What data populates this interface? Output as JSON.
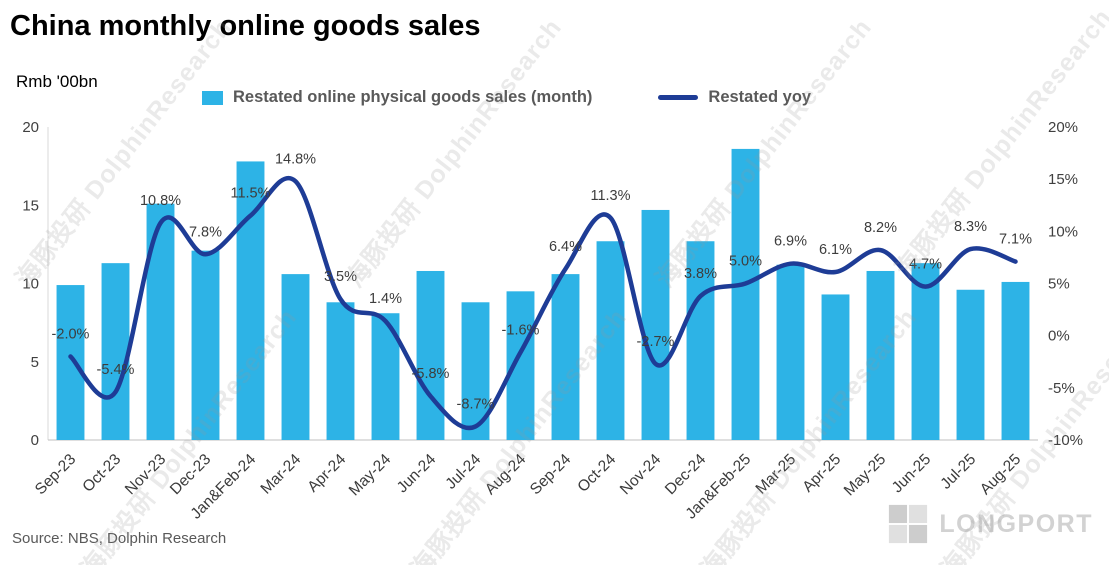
{
  "title": "China monthly online goods sales",
  "axis_unit_label": "Rmb '00bn",
  "source_note": "Source: NBS, Dolphin Research",
  "watermark_text": "海豚投研 DolphinResearch",
  "logo_text": "LONGPORT",
  "legend": {
    "bar_label": "Restated online physical goods sales  (month)",
    "line_label": "Restated yoy"
  },
  "colors": {
    "bar": "#2db3e6",
    "line": "#1e3c96",
    "label_text": "#3d3d3d"
  },
  "chart_data": {
    "type": "bar+line",
    "title": "China monthly online goods sales",
    "ylabel_left": "Rmb '00bn",
    "grid": false,
    "legend_position": "top",
    "categories": [
      "Sep-23",
      "Oct-23",
      "Nov-23",
      "Dec-23",
      "Jan&Feb-24",
      "Mar-24",
      "Apr-24",
      "May-24",
      "Jun-24",
      "Jul-24",
      "Aug-24",
      "Sep-24",
      "Oct-24",
      "Nov-24",
      "Dec-24",
      "Jan&Feb-25",
      "Mar-25",
      "Apr-25",
      "May-25",
      "Jun-25",
      "Jul-25",
      "Aug-25"
    ],
    "series": [
      {
        "name": "Restated online physical goods sales (month)",
        "type": "bar",
        "axis": "left",
        "unit": "Rmb '00bn",
        "values": [
          9.9,
          11.3,
          15.1,
          12.1,
          17.8,
          10.6,
          8.8,
          8.1,
          10.8,
          8.8,
          9.5,
          10.6,
          12.7,
          14.7,
          12.7,
          18.6,
          11.2,
          9.3,
          10.8,
          11.3,
          9.6,
          10.1
        ]
      },
      {
        "name": "Restated yoy",
        "type": "line",
        "axis": "right",
        "unit": "%",
        "values": [
          -2.0,
          -5.4,
          10.8,
          7.8,
          11.5,
          14.8,
          3.5,
          1.4,
          -5.8,
          -8.7,
          -1.6,
          6.4,
          11.3,
          -2.7,
          3.8,
          5.0,
          6.9,
          6.1,
          8.2,
          4.7,
          8.3,
          7.1
        ],
        "labels": [
          "-2.0%",
          "-5.4%",
          "10.8%",
          "7.8%",
          "11.5%",
          "14.8%",
          "3.5%",
          "1.4%",
          "-5.8%",
          "-8.7%",
          "-1.6%",
          "6.4%",
          "11.3%",
          "-2.7%",
          "3.8%",
          "5.0%",
          "6.9%",
          "6.1%",
          "8.2%",
          "4.7%",
          "8.3%",
          "7.1%"
        ]
      }
    ],
    "left_axis": {
      "min": 0,
      "max": 20,
      "ticks": [
        0,
        5,
        10,
        15,
        20
      ]
    },
    "right_axis": {
      "min": -10,
      "max": 20,
      "ticks": [
        -10,
        -5,
        0,
        5,
        10,
        15,
        20
      ],
      "tick_labels": [
        "-10%",
        "-5%",
        "0%",
        "5%",
        "10%",
        "15%",
        "20%"
      ]
    }
  }
}
